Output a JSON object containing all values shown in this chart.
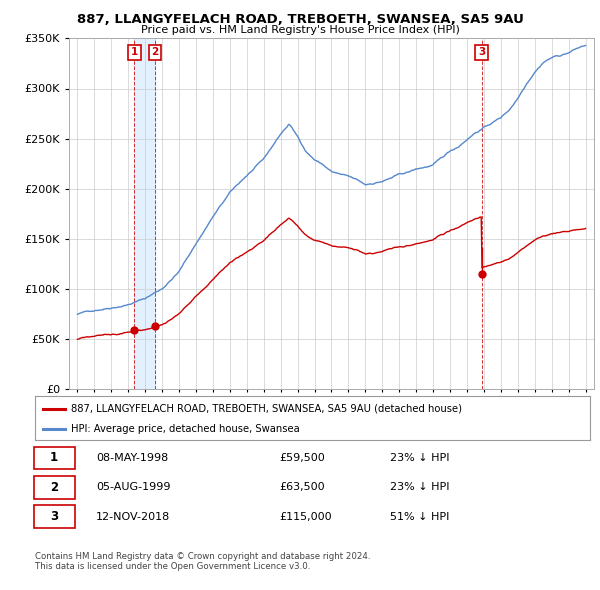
{
  "title": "887, LLANGYFELACH ROAD, TREBOETH, SWANSEA, SA5 9AU",
  "subtitle": "Price paid vs. HM Land Registry's House Price Index (HPI)",
  "sale_dates": [
    1998.36,
    1999.59,
    2018.87
  ],
  "sale_prices": [
    59500,
    63500,
    115000
  ],
  "sale_labels": [
    "1",
    "2",
    "3"
  ],
  "legend_property": "887, LLANGYFELACH ROAD, TREBOETH, SWANSEA, SA5 9AU (detached house)",
  "legend_hpi": "HPI: Average price, detached house, Swansea",
  "table_rows": [
    [
      "1",
      "08-MAY-1998",
      "£59,500",
      "23% ↓ HPI"
    ],
    [
      "2",
      "05-AUG-1999",
      "£63,500",
      "23% ↓ HPI"
    ],
    [
      "3",
      "12-NOV-2018",
      "£115,000",
      "51% ↓ HPI"
    ]
  ],
  "footnote1": "Contains HM Land Registry data © Crown copyright and database right 2024.",
  "footnote2": "This data is licensed under the Open Government Licence v3.0.",
  "property_color": "#cc0000",
  "hpi_color": "#5588cc",
  "shade_color": "#ddeeff",
  "ylim": [
    0,
    350000
  ],
  "xlim": [
    1994.5,
    2025.5
  ],
  "background_color": "#ffffff",
  "grid_color": "#cccccc"
}
